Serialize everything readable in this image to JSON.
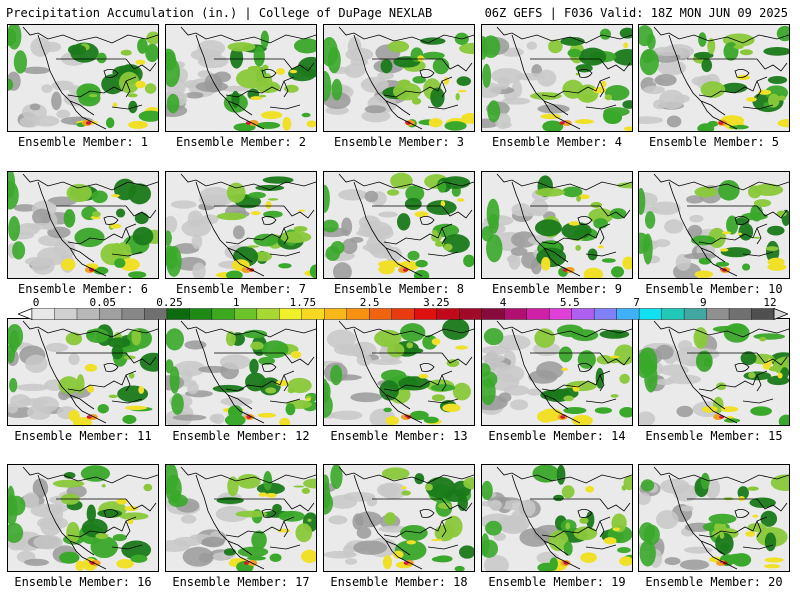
{
  "header": {
    "left": "Precipitation Accumulation (in.) | College of DuPage NEXLAB",
    "right": "06Z GEFS | F036 Valid: 18Z MON JUN 09 2025"
  },
  "members": [
    {
      "label": "Ensemble Member: 1"
    },
    {
      "label": "Ensemble Member: 2"
    },
    {
      "label": "Ensemble Member: 3"
    },
    {
      "label": "Ensemble Member: 4"
    },
    {
      "label": "Ensemble Member: 5"
    },
    {
      "label": "Ensemble Member: 6"
    },
    {
      "label": "Ensemble Member: 7"
    },
    {
      "label": "Ensemble Member: 8"
    },
    {
      "label": "Ensemble Member: 9"
    },
    {
      "label": "Ensemble Member: 10"
    },
    {
      "label": "Ensemble Member: 11"
    },
    {
      "label": "Ensemble Member: 12"
    },
    {
      "label": "Ensemble Member: 13"
    },
    {
      "label": "Ensemble Member: 14"
    },
    {
      "label": "Ensemble Member: 15"
    },
    {
      "label": "Ensemble Member: 16"
    },
    {
      "label": "Ensemble Member: 17"
    },
    {
      "label": "Ensemble Member: 18"
    },
    {
      "label": "Ensemble Member: 19"
    },
    {
      "label": "Ensemble Member: 20"
    }
  ],
  "colorbar": {
    "tick_labels": [
      "0",
      "0.05",
      "0.25",
      "1",
      "1.75",
      "2.5",
      "3.25",
      "4",
      "5.5",
      "7",
      "9",
      "12"
    ],
    "colors": [
      "#e8e8e8",
      "#d0d0d0",
      "#b8b8b8",
      "#a0a0a0",
      "#888888",
      "#707070",
      "#0d6b0d",
      "#1e8a14",
      "#3ea81e",
      "#6cc42a",
      "#a8d832",
      "#f0f028",
      "#f8d820",
      "#f8b818",
      "#f89010",
      "#f06410",
      "#e83c10",
      "#e01010",
      "#c00a1c",
      "#a00a28",
      "#880a3c",
      "#b01070",
      "#d020a8",
      "#e040d8",
      "#b060f0",
      "#8080f8",
      "#40b0f8",
      "#10e0f0",
      "#20c8b8",
      "#40a8a0",
      "#909090",
      "#707070",
      "#505050"
    ]
  },
  "map_colors": {
    "bg": "#eaeaea",
    "gray_light": "#c8c8c8",
    "gray_dark": "#9a9a9a",
    "green_dark": "#1a7a1a",
    "green": "#3aa82a",
    "green_light": "#8ac83a",
    "yellow": "#f0e028",
    "orange": "#f0a020",
    "red": "#d81818",
    "magenta": "#c828a8",
    "border": "#000000"
  }
}
